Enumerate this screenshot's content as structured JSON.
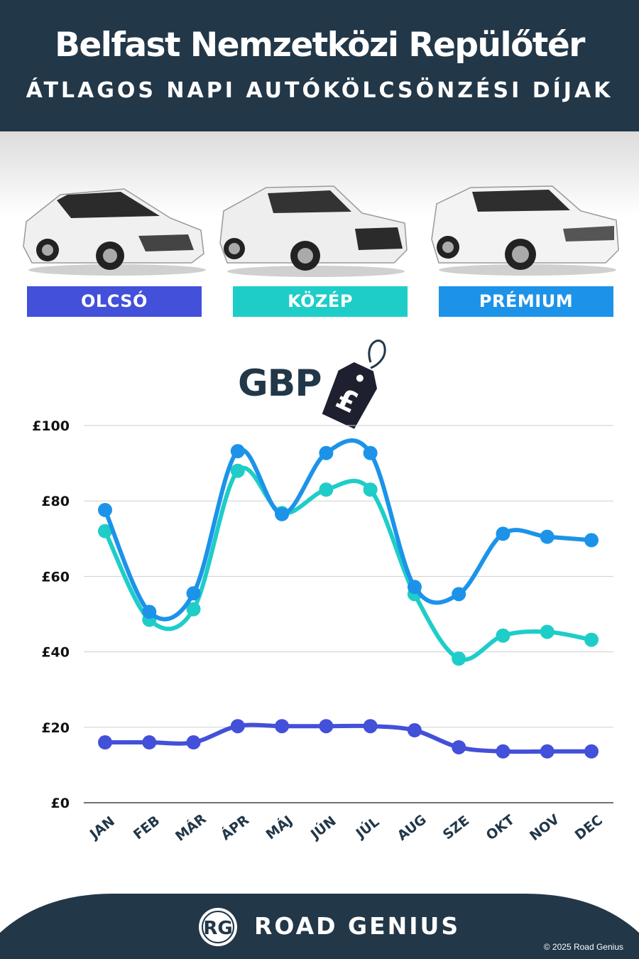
{
  "header": {
    "title": "Belfast Nemzetközi Repülőtér",
    "subtitle": "ÁTLAGOS NAPI AUTÓKÖLCSÖNZÉSI DÍJAK"
  },
  "categories": [
    {
      "label": "OLCSÓ",
      "color": "#4350d9"
    },
    {
      "label": "KÖZÉP",
      "color": "#1ecdc8"
    },
    {
      "label": "PRÉMIUM",
      "color": "#1c93e9"
    }
  ],
  "currency": {
    "label": "GBP",
    "symbol": "£"
  },
  "chart_data": {
    "type": "line",
    "categories": [
      "JAN",
      "FEB",
      "MÁR",
      "ÁPR",
      "MÁJ",
      "JÚN",
      "JÚL",
      "AUG",
      "SZE",
      "OKT",
      "NOV",
      "DEC"
    ],
    "series": [
      {
        "name": "OLCSÓ",
        "color": "#4350d9",
        "values": [
          16,
          16,
          16,
          20.3,
          20.3,
          20.3,
          20.3,
          19.2,
          14.7,
          13.6,
          13.6,
          13.6
        ]
      },
      {
        "name": "KÖZÉP",
        "color": "#1ecdc8",
        "values": [
          72,
          48.5,
          51.3,
          88,
          76.8,
          83,
          83,
          55.3,
          38.2,
          44.3,
          45.3,
          43.2
        ]
      },
      {
        "name": "PRÉMIUM",
        "color": "#1c93e9",
        "values": [
          77.6,
          50.6,
          55.5,
          93.2,
          76.5,
          92.7,
          92.7,
          57.2,
          55.3,
          71.3,
          70.5,
          69.6
        ]
      }
    ],
    "y_ticks": [
      "£0",
      "£20",
      "£40",
      "£60",
      "£80",
      "£100"
    ],
    "ylim": [
      0,
      100
    ],
    "grid": true
  },
  "footer": {
    "brand": "ROAD GENIUS",
    "logo_text": "RG",
    "copyright": "© 2025 Road Genius"
  }
}
